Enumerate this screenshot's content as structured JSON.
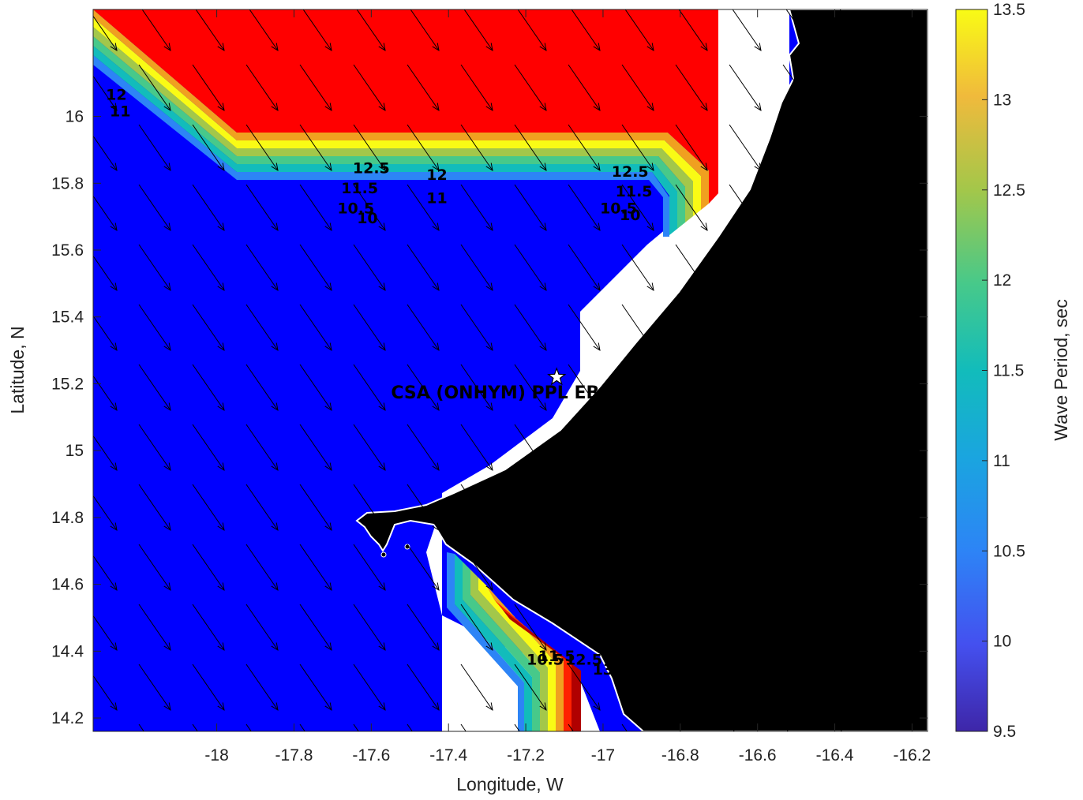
{
  "chart_data": {
    "type": "heatmap",
    "xlabel": "Longitude, W",
    "ylabel": "Latitude, N",
    "xlim": [
      -18.32,
      -16.16
    ],
    "ylim": [
      14.16,
      16.32
    ],
    "x_ticks": [
      -18,
      -17.8,
      -17.6,
      -17.4,
      -17.2,
      -17,
      -16.8,
      -16.6,
      -16.4,
      -16.2
    ],
    "y_ticks": [
      14.2,
      14.4,
      14.6,
      14.8,
      15,
      15.2,
      15.4,
      15.6,
      15.8,
      16
    ],
    "colorbar": {
      "label": "Wave Period, sec",
      "range": [
        9.5,
        13.5
      ],
      "ticks": [
        "9.5",
        "10",
        "10.5",
        "11",
        "11.5",
        "12",
        "12.5",
        "13",
        "13.5"
      ],
      "colormap": "parula"
    },
    "contour_levels": [
      10,
      10.5,
      11,
      11.5,
      12,
      12.5,
      13
    ],
    "contour_labels": [
      {
        "text": "12",
        "lon": -18.26,
        "lat": 16.05
      },
      {
        "text": "11",
        "lon": -18.25,
        "lat": 16.0
      },
      {
        "text": "12.5",
        "lon": -17.6,
        "lat": 15.83
      },
      {
        "text": "11.5",
        "lon": -17.63,
        "lat": 15.77
      },
      {
        "text": "12",
        "lon": -17.43,
        "lat": 15.81
      },
      {
        "text": "11",
        "lon": -17.43,
        "lat": 15.74
      },
      {
        "text": "10.5",
        "lon": -17.64,
        "lat": 15.71
      },
      {
        "text": "10",
        "lon": -17.61,
        "lat": 15.68
      },
      {
        "text": "12.5",
        "lon": -16.93,
        "lat": 15.82
      },
      {
        "text": "11.5",
        "lon": -16.92,
        "lat": 15.76
      },
      {
        "text": "10.5",
        "lon": -16.96,
        "lat": 15.71
      },
      {
        "text": "10",
        "lon": -16.93,
        "lat": 15.69
      },
      {
        "text": "10.5",
        "lon": -17.15,
        "lat": 14.36
      },
      {
        "text": "11.5",
        "lon": -17.12,
        "lat": 14.37
      },
      {
        "text": "12.5",
        "lon": -17.05,
        "lat": 14.36
      },
      {
        "text": "13",
        "lon": -17.0,
        "lat": 14.33
      }
    ],
    "site": {
      "label": "CSA (ONHYM) PPL EBS",
      "lon": -17.12,
      "lat": 15.22
    },
    "colors": {
      "high_region": "#ff0000",
      "low_region": "#0000ff",
      "land": "#000000",
      "coastline": "#ffffff"
    }
  }
}
